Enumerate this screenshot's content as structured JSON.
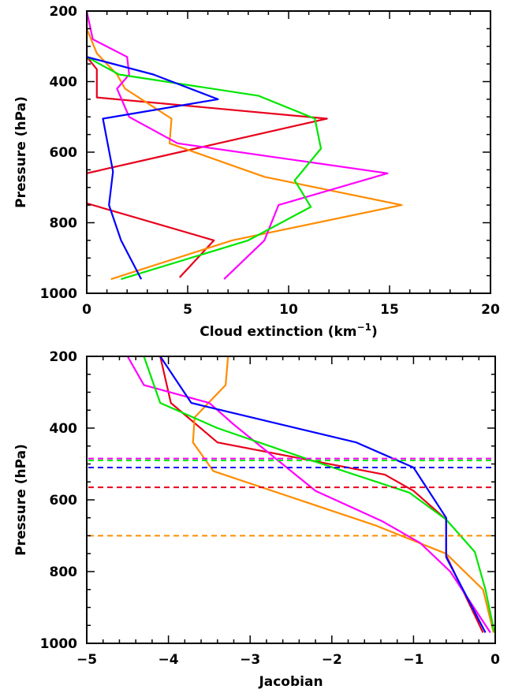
{
  "chart_data": [
    {
      "type": "line",
      "xlabel": "Cloud extinction (km",
      "xlabel_sup": "−1",
      "xlabel_suffix": ")",
      "ylabel": "Pressure (hPa)",
      "xlim": [
        0,
        20
      ],
      "ylim": [
        1000,
        200
      ],
      "y_inverted": true,
      "xticks": [
        0,
        5,
        10,
        15,
        20
      ],
      "xtick_labels": [
        "0",
        "5",
        "10",
        "15",
        "20"
      ],
      "yticks": [
        200,
        400,
        600,
        800,
        1000
      ],
      "ytick_labels": [
        "200",
        "400",
        "600",
        "800",
        "1000"
      ],
      "grid": false,
      "series": [
        {
          "color": "#e8001c",
          "points": [
            [
              0,
              200
            ],
            [
              0,
              330
            ],
            [
              0.5,
              365
            ],
            [
              0.5,
              445
            ],
            [
              11.9,
              505
            ],
            [
              0,
              660
            ],
            [
              0,
              745
            ],
            [
              6.3,
              850
            ],
            [
              4.6,
              955
            ]
          ]
        },
        {
          "color": "#ff8c00",
          "points": [
            [
              0,
              200
            ],
            [
              0,
              250
            ],
            [
              0.5,
              320
            ],
            [
              1.5,
              380
            ],
            [
              1.9,
              420
            ],
            [
              4.2,
              505
            ],
            [
              4.1,
              575
            ],
            [
              8.8,
              670
            ],
            [
              15.6,
              750
            ],
            [
              7.2,
              850
            ],
            [
              1.2,
              960
            ]
          ]
        },
        {
          "color": "#ff00ff",
          "points": [
            [
              0,
              200
            ],
            [
              0.3,
              280
            ],
            [
              2,
              330
            ],
            [
              2.1,
              380
            ],
            [
              1.5,
              420
            ],
            [
              2.1,
              500
            ],
            [
              4.5,
              575
            ],
            [
              14.9,
              660
            ],
            [
              9.5,
              750
            ],
            [
              8.8,
              850
            ],
            [
              6.8,
              960
            ]
          ]
        },
        {
          "color": "#00e600",
          "points": [
            [
              0,
              200
            ],
            [
              0,
              330
            ],
            [
              1.6,
              380
            ],
            [
              8.5,
              440
            ],
            [
              11.3,
              505
            ],
            [
              11.6,
              590
            ],
            [
              10.3,
              680
            ],
            [
              11.1,
              755
            ],
            [
              8,
              850
            ],
            [
              1.7,
              960
            ]
          ]
        },
        {
          "color": "#0000ff",
          "points": [
            [
              0,
              300
            ],
            [
              0,
              330
            ],
            [
              3.3,
              380
            ],
            [
              6.5,
              450
            ],
            [
              0.8,
              505
            ],
            [
              1.3,
              655
            ],
            [
              1.1,
              750
            ],
            [
              1.7,
              850
            ],
            [
              2.7,
              960
            ]
          ]
        }
      ]
    },
    {
      "type": "line",
      "xlabel": "Jacobian",
      "ylabel": "Pressure (hPa)",
      "xlim": [
        -5,
        0
      ],
      "ylim": [
        1000,
        200
      ],
      "y_inverted": true,
      "xticks": [
        -5,
        -4,
        -3,
        -2,
        -1,
        0
      ],
      "xtick_labels": [
        "−5",
        "−4",
        "−3",
        "−2",
        "−1",
        "0"
      ],
      "yticks": [
        200,
        400,
        600,
        800,
        1000
      ],
      "ytick_labels": [
        "200",
        "400",
        "600",
        "800",
        "1000"
      ],
      "grid": false,
      "series": [
        {
          "color": "#e8001c",
          "points": [
            [
              -4.1,
              200
            ],
            [
              -3.97,
              330
            ],
            [
              -3.4,
              440
            ],
            [
              -1.35,
              530
            ],
            [
              -1.0,
              575
            ],
            [
              -0.6,
              655
            ],
            [
              -0.6,
              755
            ],
            [
              -0.15,
              970
            ]
          ]
        },
        {
          "color": "#ff8c00",
          "points": [
            [
              -3.27,
              200
            ],
            [
              -3.3,
              280
            ],
            [
              -3.68,
              370
            ],
            [
              -3.7,
              440
            ],
            [
              -3.45,
              520
            ],
            [
              -1.48,
              670
            ],
            [
              -0.6,
              750
            ],
            [
              -0.15,
              850
            ],
            [
              -0.02,
              970
            ]
          ]
        },
        {
          "color": "#ff00ff",
          "points": [
            [
              -4.5,
              200
            ],
            [
              -4.3,
              280
            ],
            [
              -3.5,
              330
            ],
            [
              -3.2,
              390
            ],
            [
              -2.2,
              575
            ],
            [
              -1.38,
              660
            ],
            [
              -0.92,
              720
            ],
            [
              -0.55,
              800
            ],
            [
              -0.06,
              970
            ]
          ]
        },
        {
          "color": "#00e600",
          "points": [
            [
              -4.3,
              200
            ],
            [
              -4.1,
              330
            ],
            [
              -3.4,
              400
            ],
            [
              -2.25,
              490
            ],
            [
              -1.05,
              580
            ],
            [
              -0.6,
              655
            ],
            [
              -0.25,
              745
            ],
            [
              -0.12,
              850
            ],
            [
              -0.01,
              970
            ]
          ]
        },
        {
          "color": "#0000ff",
          "points": [
            [
              -4.1,
              200
            ],
            [
              -3.72,
              330
            ],
            [
              -1.7,
              440
            ],
            [
              -1.0,
              510
            ],
            [
              -0.6,
              650
            ],
            [
              -0.6,
              760
            ],
            [
              -0.12,
              970
            ]
          ]
        }
      ],
      "hlines": [
        {
          "color": "#ff00ff",
          "y": 485
        },
        {
          "color": "#00e600",
          "y": 490
        },
        {
          "color": "#0000ff",
          "y": 510
        },
        {
          "color": "#e8001c",
          "y": 565
        },
        {
          "color": "#ff8c00",
          "y": 700
        }
      ]
    }
  ]
}
